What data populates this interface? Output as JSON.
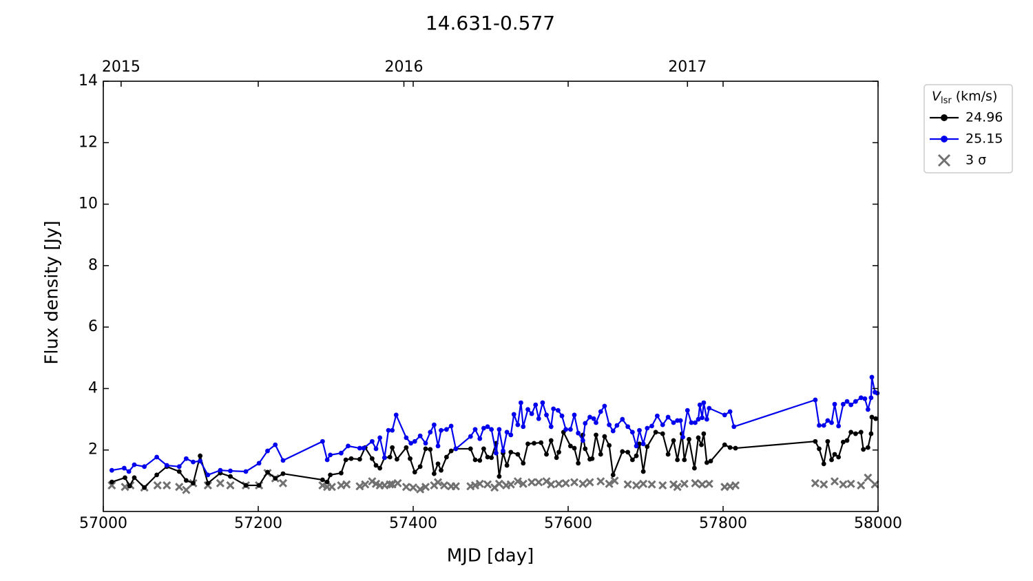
{
  "chart_data": {
    "type": "line",
    "title": "14.631-0.577",
    "xlabel": "MJD [day]",
    "ylabel": "Flux density [Jy]",
    "xlim": [
      57000,
      58000
    ],
    "xticks": [
      57000,
      57200,
      57400,
      57600,
      57800,
      58000
    ],
    "top_xticks": [
      {
        "value": 57023,
        "label": "2015"
      },
      {
        "value": 57388,
        "label": "2016"
      },
      {
        "value": 57754,
        "label": "2017"
      }
    ],
    "ylim": [
      0,
      14
    ],
    "yticks": [
      2,
      4,
      6,
      8,
      10,
      12,
      14
    ],
    "legend_position": "outside right top",
    "legend_title": {
      "symbol": "V",
      "subscript": "lsr",
      "unit": "(km/s)"
    },
    "series": [
      {
        "name": "24.96",
        "color": "#000000",
        "marker": "o",
        "x": [
          57011,
          57028,
          57034,
          57040,
          57053,
          57069,
          57082,
          57098,
          57107,
          57116,
          57125,
          57135,
          57151,
          57164,
          57184,
          57201,
          57212,
          57222,
          57232,
          57283,
          57289,
          57293,
          57307,
          57313,
          57320,
          57331,
          57338,
          57347,
          57352,
          57357,
          57363,
          57370,
          57373,
          57379,
          57391,
          57396,
          57402,
          57409,
          57416,
          57422,
          57427,
          57432,
          57436,
          57443,
          57449,
          57455,
          57474,
          57480,
          57486,
          57491,
          57496,
          57501,
          57507,
          57511,
          57516,
          57521,
          57526,
          57535,
          57542,
          57548,
          57556,
          57565,
          57572,
          57578,
          57585,
          57588,
          57594,
          57603,
          57608,
          57613,
          57619,
          57622,
          57628,
          57631,
          57636,
          57642,
          57647,
          57653,
          57658,
          57670,
          57677,
          57683,
          57688,
          57692,
          57697,
          57702,
          57713,
          57722,
          57729,
          57736,
          57741,
          57747,
          57750,
          57756,
          57763,
          57768,
          57772,
          57775,
          57779,
          57784,
          57802,
          57809,
          57816,
          57919,
          57924,
          57930,
          57935,
          57940,
          57944,
          57949,
          57955,
          57960,
          57965,
          57971,
          57978,
          57981,
          57987,
          57991,
          57992,
          57997
        ],
        "values": [
          0.96,
          1.1,
          0.83,
          1.1,
          0.78,
          1.19,
          1.46,
          1.3,
          1.01,
          0.92,
          1.81,
          0.92,
          1.25,
          1.14,
          0.85,
          0.85,
          1.28,
          1.08,
          1.23,
          1.03,
          0.96,
          1.19,
          1.25,
          1.68,
          1.72,
          1.7,
          2.08,
          1.72,
          1.5,
          1.41,
          1.75,
          1.77,
          2.08,
          1.7,
          2.08,
          1.72,
          1.28,
          1.46,
          2.04,
          2.02,
          1.23,
          1.55,
          1.34,
          1.77,
          1.97,
          2.04,
          2.04,
          1.68,
          1.66,
          2.04,
          1.77,
          1.75,
          2.22,
          1.14,
          1.9,
          1.5,
          1.93,
          1.86,
          1.57,
          2.2,
          2.22,
          2.24,
          1.86,
          2.31,
          1.75,
          1.93,
          2.58,
          2.13,
          2.06,
          1.57,
          2.49,
          2.04,
          1.7,
          1.72,
          2.49,
          1.86,
          2.44,
          2.15,
          1.19,
          1.95,
          1.93,
          1.68,
          1.81,
          2.2,
          1.3,
          2.11,
          2.58,
          2.53,
          1.86,
          2.31,
          1.68,
          2.53,
          1.68,
          2.35,
          1.41,
          2.4,
          2.17,
          2.53,
          1.59,
          1.64,
          2.17,
          2.08,
          2.06,
          2.28,
          2.04,
          1.55,
          2.28,
          1.68,
          1.86,
          1.77,
          2.26,
          2.31,
          2.58,
          2.53,
          2.58,
          2.02,
          2.08,
          2.53,
          3.07,
          3.02
        ]
      },
      {
        "name": "25.15",
        "color": "#0000ee",
        "marker": "o",
        "x": [
          57011,
          57027,
          57033,
          57040,
          57053,
          57069,
          57082,
          57098,
          57107,
          57116,
          57125,
          57135,
          57151,
          57164,
          57184,
          57201,
          57212,
          57222,
          57232,
          57283,
          57289,
          57293,
          57307,
          57316,
          57331,
          57336,
          57347,
          57352,
          57357,
          57363,
          57368,
          57373,
          57378,
          57391,
          57397,
          57402,
          57409,
          57416,
          57422,
          57427,
          57432,
          57436,
          57443,
          57449,
          57455,
          57474,
          57480,
          57486,
          57491,
          57496,
          57501,
          57507,
          57511,
          57516,
          57521,
          57526,
          57530,
          57535,
          57539,
          57542,
          57548,
          57553,
          57558,
          57562,
          57567,
          57572,
          57578,
          57581,
          57587,
          57592,
          57597,
          57603,
          57608,
          57613,
          57619,
          57622,
          57628,
          57633,
          57636,
          57642,
          57647,
          57653,
          57658,
          57663,
          57670,
          57677,
          57683,
          57688,
          57692,
          57697,
          57702,
          57708,
          57715,
          57722,
          57729,
          57736,
          57741,
          57745,
          57748,
          57754,
          57759,
          57764,
          57768,
          57770,
          57773,
          57775,
          57779,
          57782,
          57802,
          57809,
          57814,
          57919,
          57924,
          57930,
          57935,
          57940,
          57944,
          57949,
          57955,
          57960,
          57965,
          57971,
          57978,
          57983,
          57987,
          57991,
          57992,
          57996,
          57999
        ],
        "values": [
          1.34,
          1.41,
          1.3,
          1.52,
          1.46,
          1.77,
          1.5,
          1.46,
          1.72,
          1.61,
          1.64,
          1.19,
          1.34,
          1.32,
          1.3,
          1.57,
          1.97,
          2.17,
          1.66,
          2.28,
          1.68,
          1.84,
          1.9,
          2.13,
          2.06,
          2.06,
          2.28,
          2.04,
          2.4,
          1.75,
          2.64,
          2.64,
          3.14,
          2.4,
          2.22,
          2.28,
          2.46,
          2.22,
          2.58,
          2.82,
          2.13,
          2.64,
          2.67,
          2.78,
          2.04,
          2.44,
          2.67,
          2.37,
          2.71,
          2.76,
          2.67,
          1.9,
          2.67,
          1.97,
          2.58,
          2.49,
          3.16,
          2.82,
          3.54,
          2.76,
          3.32,
          3.18,
          3.47,
          3.02,
          3.54,
          3.14,
          2.76,
          3.34,
          3.29,
          3.11,
          2.67,
          2.67,
          3.14,
          2.55,
          2.31,
          2.87,
          3.07,
          3.02,
          2.89,
          3.25,
          3.43,
          2.82,
          2.62,
          2.8,
          3.0,
          2.76,
          2.58,
          2.13,
          2.64,
          2.2,
          2.71,
          2.78,
          3.11,
          2.82,
          3.07,
          2.89,
          2.96,
          2.96,
          2.42,
          3.29,
          2.89,
          2.89,
          3.0,
          3.47,
          3.05,
          3.54,
          3.0,
          3.36,
          3.14,
          3.25,
          2.76,
          3.63,
          2.8,
          2.8,
          2.96,
          2.89,
          3.49,
          2.78,
          3.49,
          3.58,
          3.47,
          3.58,
          3.7,
          3.67,
          3.32,
          3.7,
          4.37,
          3.88,
          3.85
        ]
      },
      {
        "name": "3 σ",
        "color": "#707070",
        "marker": "x",
        "x": [
          57011,
          57028,
          57035,
          57053,
          57070,
          57082,
          57098,
          57107,
          57116,
          57135,
          57151,
          57164,
          57184,
          57201,
          57212,
          57222,
          57232,
          57283,
          57289,
          57295,
          57307,
          57314,
          57331,
          57338,
          57347,
          57352,
          57357,
          57363,
          57370,
          57373,
          57380,
          57391,
          57400,
          57409,
          57416,
          57427,
          57432,
          57440,
          57449,
          57455,
          57474,
          57480,
          57486,
          57496,
          57505,
          57511,
          57520,
          57526,
          57535,
          57542,
          57553,
          57562,
          57572,
          57578,
          57588,
          57597,
          57608,
          57619,
          57628,
          57642,
          57653,
          57660,
          57677,
          57688,
          57697,
          57708,
          57722,
          57736,
          57741,
          57750,
          57764,
          57773,
          57782,
          57802,
          57809,
          57816,
          57919,
          57930,
          57944,
          57955,
          57965,
          57978,
          57987,
          57996
        ],
        "values": [
          0.85,
          0.8,
          0.85,
          0.78,
          0.85,
          0.85,
          0.8,
          0.7,
          0.92,
          0.85,
          0.92,
          0.85,
          0.85,
          0.85,
          1.25,
          1.08,
          0.92,
          0.85,
          0.8,
          0.8,
          0.85,
          0.88,
          0.82,
          0.88,
          0.98,
          0.9,
          0.85,
          0.85,
          0.88,
          0.88,
          0.92,
          0.8,
          0.78,
          0.72,
          0.8,
          0.85,
          0.95,
          0.85,
          0.82,
          0.82,
          0.82,
          0.85,
          0.9,
          0.88,
          0.78,
          0.9,
          0.85,
          0.88,
          0.98,
          0.9,
          0.95,
          0.95,
          0.98,
          0.88,
          0.9,
          0.92,
          0.95,
          0.9,
          0.95,
          0.98,
          0.9,
          1.0,
          0.88,
          0.85,
          0.9,
          0.88,
          0.85,
          0.88,
          0.8,
          0.9,
          0.92,
          0.88,
          0.9,
          0.8,
          0.82,
          0.85,
          0.92,
          0.88,
          0.98,
          0.88,
          0.9,
          0.85,
          1.1,
          0.88
        ]
      }
    ]
  }
}
